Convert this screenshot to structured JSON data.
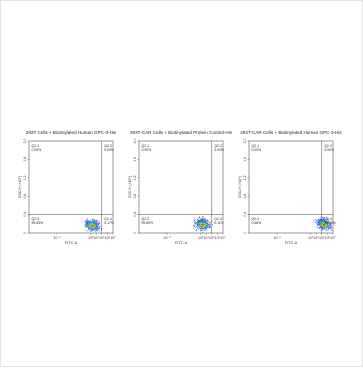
{
  "chart_data": [
    {
      "type": "scatter",
      "title": "293T Cells + Biotinylated Human GPC-3-His",
      "xlabel": "FITC-A",
      "ylabel": "SSC-H (×10⁶)",
      "x_scale": "log",
      "xlim": [
        1e-08,
        10000000.0
      ],
      "x_ticks": [
        "10⁻³",
        "10³",
        "10⁴",
        "10⁵",
        "10⁶",
        "10⁷"
      ],
      "y_ticks": [
        "0",
        "0.4",
        "0.8",
        "1.2",
        "1.6",
        "2.0"
      ],
      "ylim": [
        0,
        2.0
      ],
      "gate": {
        "x": 100000,
        "y": 0.4
      },
      "quadrants": [
        {
          "name": "Q2-1",
          "percent": "0.00%"
        },
        {
          "name": "Q2-2",
          "percent": "0.00%"
        },
        {
          "name": "Q2-3",
          "percent": "99.83%"
        },
        {
          "name": "Q2-4",
          "percent": "0.17%"
        }
      ],
      "population": {
        "center_x": 2000,
        "center_y": 0.16
      }
    },
    {
      "type": "scatter",
      "title": "293T-CAR Cells + Biotinylated Protein Control-His",
      "xlabel": "FITC-A",
      "ylabel": "SSC-H (×10⁶)",
      "x_scale": "log",
      "xlim": [
        1e-08,
        10000000.0
      ],
      "x_ticks": [
        "10⁻³",
        "10³",
        "10⁴",
        "10⁵",
        "10⁶",
        "10⁷"
      ],
      "y_ticks": [
        "0",
        "0.4",
        "0.8",
        "1.2",
        "1.6",
        "2.0"
      ],
      "ylim": [
        0,
        2.0
      ],
      "gate": {
        "x": 100000,
        "y": 0.4
      },
      "quadrants": [
        {
          "name": "Q2-1",
          "percent": "0.00%"
        },
        {
          "name": "Q2-2",
          "percent": "0.00%"
        },
        {
          "name": "Q2-3",
          "percent": "99.89%"
        },
        {
          "name": "Q2-4",
          "percent": "0.11%"
        }
      ],
      "population": {
        "center_x": 2500,
        "center_y": 0.18
      }
    },
    {
      "type": "scatter",
      "title": "293T-CAR Cells + Biotinylated Human GPC-3-His",
      "xlabel": "FITC-A",
      "ylabel": "SSC-H (×10⁶)",
      "x_scale": "log",
      "xlim": [
        1e-08,
        10000000.0
      ],
      "x_ticks": [
        "10⁻³",
        "10³",
        "10⁴",
        "10⁵",
        "10⁶",
        "10⁷"
      ],
      "y_ticks": [
        "0",
        "0.4",
        "0.8",
        "1.2",
        "1.6",
        "2.0"
      ],
      "ylim": [
        0,
        2.0
      ],
      "gate": {
        "x": 100000,
        "y": 0.4
      },
      "quadrants": [
        {
          "name": "Q2-1",
          "percent": "0.00%"
        },
        {
          "name": "Q2-2",
          "percent": "0.00%"
        },
        {
          "name": "Q2-3",
          "percent": "0.58%"
        },
        {
          "name": "Q2-4",
          "percent": "99.42%"
        }
      ],
      "population": {
        "center_x": 250000,
        "center_y": 0.18
      }
    }
  ]
}
